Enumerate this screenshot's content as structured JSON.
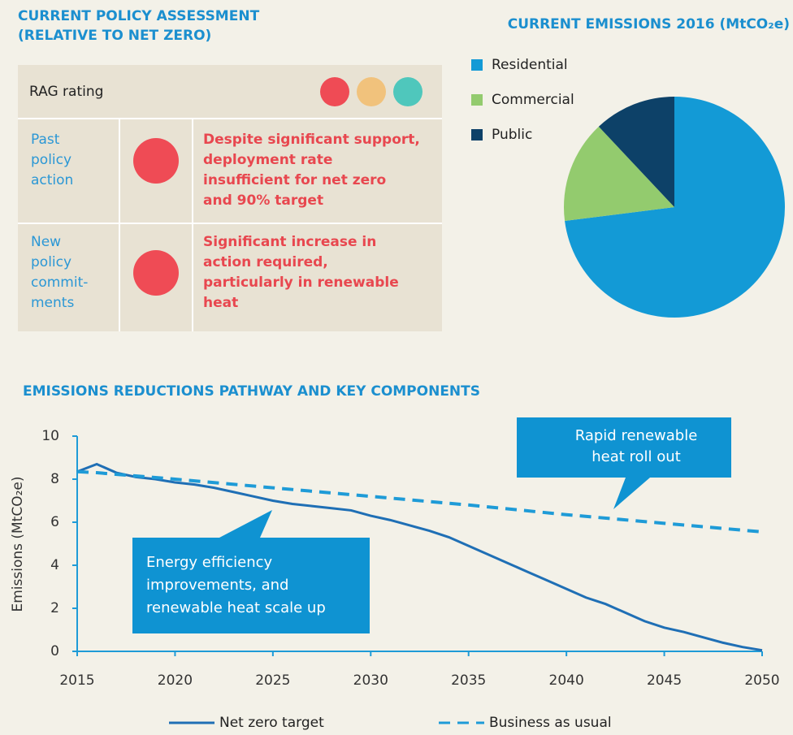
{
  "assessment": {
    "title_lines": [
      "CURRENT POLICY ASSESSMENT",
      "(RELATIVE TO NET ZERO)"
    ],
    "header": "RAG rating",
    "rag_colors": [
      "#ef4b55",
      "#f1c27c",
      "#4fc7bc"
    ],
    "rows": [
      {
        "label_lines": [
          "Past",
          "policy",
          "action"
        ],
        "rating_color": "#ef4b55",
        "text_lines": [
          "Despite significant support,",
          "deployment rate",
          "insufficient for net zero",
          "and 90% target"
        ]
      },
      {
        "label_lines": [
          "New",
          "policy",
          "commit-",
          "ments"
        ],
        "rating_color": "#ef4b55",
        "text_lines": [
          "Significant increase in",
          "action required,",
          "particularly in renewable",
          "heat"
        ]
      }
    ]
  },
  "chart_data": [
    {
      "type": "pie",
      "title": "CURRENT EMISSIONS 2016 (MtCO₂e)",
      "categories": [
        "Residential",
        "Commercial",
        "Public"
      ],
      "values": [
        73,
        15,
        12
      ],
      "colors": [
        "#139ad6",
        "#93cb6e",
        "#0d4168"
      ]
    },
    {
      "type": "line",
      "title": "EMISSIONS REDUCTIONS PATHWAY AND KEY COMPONENTS",
      "y_label": "Emissions (MtCO₂e)",
      "xlim": [
        2015,
        2050
      ],
      "xticks": [
        2015,
        2020,
        2025,
        2030,
        2035,
        2040,
        2045,
        2050
      ],
      "ylim": [
        0,
        10
      ],
      "yticks": [
        0,
        2,
        4,
        6,
        8,
        10
      ],
      "series": [
        {
          "name": "Net zero target",
          "color": "#1f6fb5",
          "dashed": false,
          "x": [
            2015,
            2016,
            2017,
            2018,
            2019,
            2020,
            2021,
            2022,
            2023,
            2024,
            2025,
            2026,
            2027,
            2028,
            2029,
            2030,
            2031,
            2032,
            2033,
            2034,
            2035,
            2036,
            2037,
            2038,
            2039,
            2040,
            2041,
            2042,
            2043,
            2044,
            2045,
            2046,
            2047,
            2048,
            2049,
            2050
          ],
          "values": [
            8.35,
            8.7,
            8.3,
            8.1,
            8.0,
            7.85,
            7.75,
            7.6,
            7.4,
            7.2,
            7.0,
            6.85,
            6.75,
            6.65,
            6.55,
            6.3,
            6.1,
            5.85,
            5.6,
            5.3,
            4.9,
            4.5,
            4.1,
            3.7,
            3.3,
            2.9,
            2.5,
            2.2,
            1.8,
            1.4,
            1.1,
            0.9,
            0.65,
            0.4,
            0.2,
            0.05
          ]
        },
        {
          "name": "Business as usual",
          "color": "#1e9bd7",
          "dashed": true,
          "x": [
            2015,
            2016,
            2020,
            2025,
            2030,
            2035,
            2040,
            2045,
            2050
          ],
          "values": [
            8.35,
            8.3,
            8.0,
            7.6,
            7.2,
            6.8,
            6.35,
            5.95,
            5.55
          ]
        }
      ],
      "annotations": [
        {
          "lines": [
            "Energy efficiency",
            "improvements, and",
            "renewable heat scale up"
          ]
        },
        {
          "lines": [
            "Rapid renewable",
            "heat roll out"
          ]
        }
      ]
    }
  ]
}
